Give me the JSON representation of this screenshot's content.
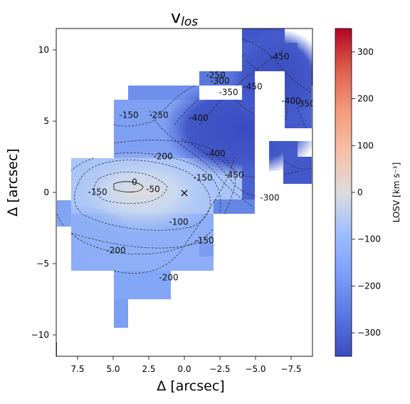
{
  "chart_data": {
    "type": "heatmap",
    "title": "v",
    "title_subscript": "los",
    "xlabel": "Δ [arcsec]",
    "ylabel": "Δ [arcsec]",
    "xlim": [
      9,
      -9
    ],
    "ylim": [
      -11.5,
      11.5
    ],
    "xticks": [
      7.5,
      5.0,
      2.5,
      0.0,
      -2.5,
      -5.0,
      -7.5
    ],
    "xtick_labels": [
      "7.5",
      "5.0",
      "2.5",
      "0.0",
      "−2.5",
      "−5.0",
      "−7.5"
    ],
    "yticks": [
      10,
      5,
      0,
      -5,
      -10
    ],
    "ytick_labels": [
      "10",
      "5",
      "0",
      "−5",
      "−10"
    ],
    "grid": false,
    "center_marker": {
      "x": 0,
      "y": 0,
      "symbol": "×"
    },
    "colorbar": {
      "label": "LOSV [km s⁻¹]",
      "range": [
        -350,
        350
      ],
      "colormap": "coolwarm",
      "ticks": [
        300,
        200,
        100,
        0,
        -100,
        -200,
        -300
      ],
      "tick_labels": [
        "300",
        "200",
        "100",
        "0",
        "−100",
        "−200",
        "−300"
      ]
    },
    "contour_labels": [
      {
        "text": "0",
        "x": 3.5,
        "y": 0.7
      },
      {
        "text": "-50",
        "x": 2.2,
        "y": 0.2
      },
      {
        "text": "-100",
        "x": 0.4,
        "y": -2.1
      },
      {
        "text": "-150",
        "x": 6.1,
        "y": 0.0
      },
      {
        "text": "-150",
        "x": 3.9,
        "y": 5.4
      },
      {
        "text": "-150",
        "x": -1.4,
        "y": -3.4
      },
      {
        "text": "-150",
        "x": -1.3,
        "y": 1.0
      },
      {
        "text": "-200",
        "x": 1.5,
        "y": 2.5
      },
      {
        "text": "-200",
        "x": 4.8,
        "y": -4.1
      },
      {
        "text": "-200",
        "x": 1.1,
        "y": -6.0
      },
      {
        "text": "-250",
        "x": 1.8,
        "y": 5.4
      },
      {
        "text": "-250",
        "x": -2.2,
        "y": 8.2
      },
      {
        "text": "-300",
        "x": -2.5,
        "y": 7.8
      },
      {
        "text": "-300",
        "x": -6.0,
        "y": -0.4
      },
      {
        "text": "-350",
        "x": -3.1,
        "y": 7.0
      },
      {
        "text": "-400",
        "x": -1.0,
        "y": 5.2
      },
      {
        "text": "-400",
        "x": -2.2,
        "y": 2.7
      },
      {
        "text": "-400",
        "x": -7.5,
        "y": 6.4
      },
      {
        "text": "-450",
        "x": -6.7,
        "y": 9.5
      },
      {
        "text": "-450",
        "x": -4.8,
        "y": 7.4
      },
      {
        "text": "-450",
        "x": -3.5,
        "y": 1.2
      },
      {
        "text": "-350",
        "x": -8.5,
        "y": 6.2
      }
    ]
  }
}
